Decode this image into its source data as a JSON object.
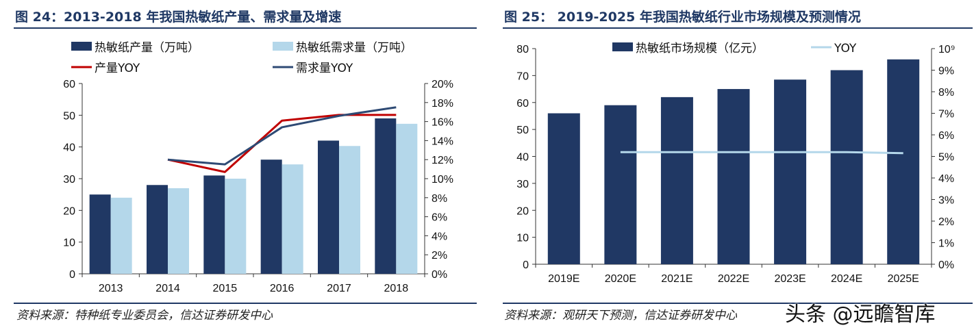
{
  "left": {
    "title": "图 24：2013-2018 年我国热敏纸产量、需求量及增速",
    "source": "资料来源：特种纸专业委员会，信达证券研发中心",
    "chart_data": {
      "type": "bar",
      "categories": [
        "2013",
        "2014",
        "2015",
        "2016",
        "2017",
        "2018"
      ],
      "series": [
        {
          "name": "热敏纸产量（万吨）",
          "kind": "bar",
          "axis": "left",
          "color": "#203864",
          "values": [
            25,
            28,
            31,
            36,
            42,
            49
          ]
        },
        {
          "name": "热敏纸需求量（万吨）",
          "kind": "bar",
          "axis": "left",
          "color": "#b4d7ea",
          "values": [
            24,
            27,
            30,
            34.5,
            40.3,
            47.3
          ]
        },
        {
          "name": "产量YOY",
          "kind": "line",
          "axis": "right",
          "color": "#c00000",
          "values": [
            null,
            12.0,
            10.7,
            16.1,
            16.7,
            16.7
          ]
        },
        {
          "name": "需求量YOY",
          "kind": "line",
          "axis": "right",
          "color": "#2e4a74",
          "values": [
            null,
            12.0,
            11.5,
            15.4,
            16.6,
            17.5
          ]
        }
      ],
      "ylim": [
        0,
        60
      ],
      "y_ticks": [
        "0",
        "10",
        "20",
        "30",
        "40",
        "50",
        "60"
      ],
      "y2lim": [
        0,
        20
      ],
      "y2_ticks": [
        "0%",
        "2%",
        "4%",
        "6%",
        "8%",
        "10%",
        "12%",
        "14%",
        "16%",
        "18%",
        "20%"
      ],
      "grid": false,
      "legend": "top"
    }
  },
  "right": {
    "title": "图 25： 2019-2025 年我国热敏纸行业市场规模及预测情况",
    "source": "资料来源：观研天下预测，信达证券研发中心",
    "chart_data": {
      "type": "bar",
      "categories": [
        "2019E",
        "2020E",
        "2021E",
        "2022E",
        "2023E",
        "2024E",
        "2025E"
      ],
      "series": [
        {
          "name": "热敏纸市场规模（亿元）",
          "kind": "bar",
          "axis": "left",
          "color": "#203864",
          "values": [
            56,
            59,
            62,
            65,
            68.5,
            72,
            76
          ]
        },
        {
          "name": "YOY",
          "kind": "line",
          "axis": "right",
          "color": "#b4d7ea",
          "values": [
            null,
            5.2,
            5.2,
            5.2,
            5.2,
            5.2,
            5.15
          ]
        }
      ],
      "ylim": [
        0,
        80
      ],
      "y_ticks": [
        "0",
        "10",
        "20",
        "30",
        "40",
        "50",
        "60",
        "70",
        "80"
      ],
      "y2lim": [
        0,
        10
      ],
      "y2_ticks": [
        "0%",
        "1%",
        "2%",
        "3%",
        "4%",
        "5%",
        "6%",
        "7%",
        "8%",
        "9%",
        "10⁹"
      ],
      "grid": false,
      "legend": "top"
    }
  },
  "watermark": "头条 @远瞻智库"
}
